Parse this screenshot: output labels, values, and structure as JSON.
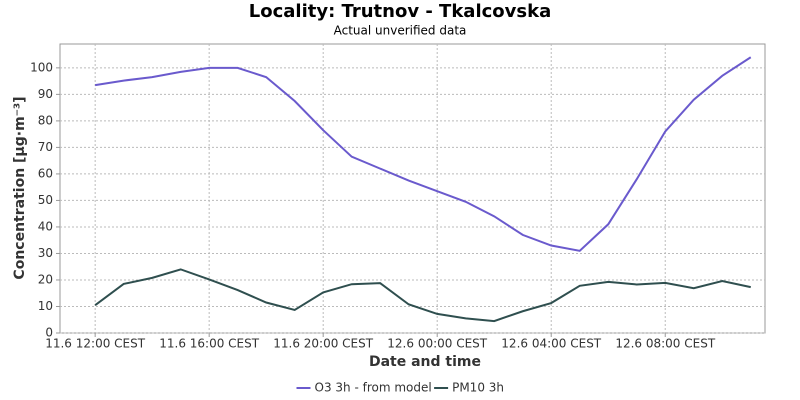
{
  "chart_data": {
    "type": "line",
    "title": "Locality: Trutnov - Tkalcovska",
    "subtitle": "Actual unverified data",
    "x_label": "Date and time",
    "y_label": "Concentration [µg·m⁻³]",
    "x": [
      "11.6 12:00 CEST",
      "11.6 13:00 CEST",
      "11.6 14:00 CEST",
      "11.6 15:00 CEST",
      "11.6 16:00 CEST",
      "11.6 17:00 CEST",
      "11.6 18:00 CEST",
      "11.6 19:00 CEST",
      "11.6 20:00 CEST",
      "11.6 21:00 CEST",
      "11.6 22:00 CEST",
      "11.6 23:00 CEST",
      "12.6 00:00 CEST",
      "12.6 01:00 CEST",
      "12.6 02:00 CEST",
      "12.6 03:00 CEST",
      "12.6 04:00 CEST",
      "12.6 05:00 CEST",
      "12.6 06:00 CEST",
      "12.6 07:00 CEST",
      "12.6 08:00 CEST",
      "12.6 09:00 CEST",
      "12.6 10:00 CEST",
      "12.6 11:00 CEST"
    ],
    "series": [
      {
        "name": "O3 3h - from model",
        "color": "#6a5acd",
        "values": [
          93.5,
          95.2,
          96.5,
          98.5,
          100,
          100,
          96.5,
          87.5,
          76.5,
          66.5,
          62,
          57.5,
          53.5,
          49.5,
          44,
          37,
          33,
          31,
          41,
          58,
          76,
          88,
          97,
          104
        ]
      },
      {
        "name": "PM10 3h",
        "color": "#2f4f4f",
        "values": [
          10.5,
          18.5,
          20.8,
          24,
          20.2,
          16.2,
          11.5,
          8.7,
          15.3,
          18.4,
          18.8,
          10.8,
          7.2,
          5.5,
          4.5,
          8.2,
          11.3,
          17.8,
          19.3,
          18.3,
          18.9,
          16.9,
          19.6,
          17.3
        ]
      }
    ],
    "xlim": [
      "11.6 10:46 CEST",
      "12.6 11:30 CEST"
    ],
    "xticks": [
      "11.6 12:00 CEST",
      "11.6 16:00 CEST",
      "11.6 20:00 CEST",
      "12.6 00:00 CEST",
      "12.6 04:00 CEST",
      "12.6 08:00 CEST"
    ],
    "ylim": [
      0,
      109
    ],
    "yticks": [
      0,
      10,
      20,
      30,
      40,
      50,
      60,
      70,
      80,
      90,
      100
    ],
    "grid": true,
    "legend": "bottom"
  }
}
